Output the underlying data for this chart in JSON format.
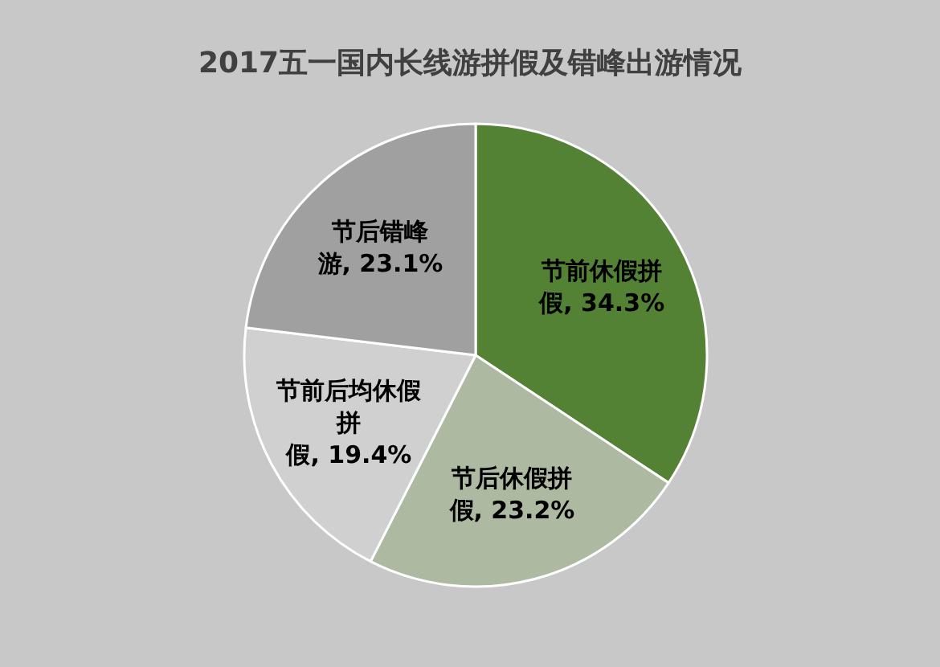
{
  "chart_data": {
    "type": "pie",
    "title": "2017五一国内长线游拼假及错峰出游情况",
    "categories": [
      "节前休假拼假",
      "节后休假拼假",
      "节前后均休假拼假",
      "节后错峰游"
    ],
    "values": [
      34.3,
      23.2,
      19.4,
      23.1
    ],
    "colors": [
      "#548235",
      "#adb9a0",
      "#d0d0d0",
      "#a0a0a0"
    ],
    "value_labels": [
      "34.3%",
      "23.2%",
      "19.4%",
      "23.1%"
    ],
    "legend": false
  }
}
